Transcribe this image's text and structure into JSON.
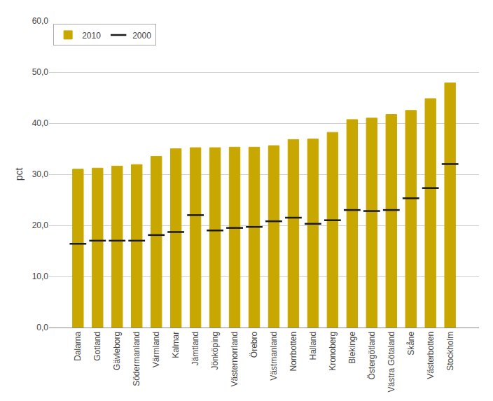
{
  "chart_data": {
    "type": "bar",
    "categories": [
      "Dalarna",
      "Gotland",
      "Gävleborg",
      "Södermanland",
      "Värmland",
      "Kalmar",
      "Jämtland",
      "Jönköping",
      "Västernorrland",
      "Örebro",
      "Västmanland",
      "Norrbotten",
      "Halland",
      "Kronoberg",
      "Blekinge",
      "Östergötland",
      "Västra Götaland",
      "Skåne",
      "Västerbotten",
      "Stockholm"
    ],
    "series": [
      {
        "name": "2010",
        "type": "bar",
        "color": "#C8A800",
        "values": [
          31.0,
          31.2,
          31.6,
          31.9,
          33.5,
          35.0,
          35.2,
          35.2,
          35.3,
          35.3,
          35.6,
          36.8,
          36.9,
          38.2,
          40.7,
          41.0,
          41.7,
          42.5,
          44.8,
          47.9
        ]
      },
      {
        "name": "2000",
        "type": "scatter",
        "marker": "line-ew",
        "color": "#1a1a1a",
        "values": [
          16.4,
          17.0,
          17.0,
          17.0,
          18.1,
          18.7,
          22.0,
          19.0,
          19.5,
          19.7,
          20.8,
          21.5,
          20.3,
          21.0,
          23.0,
          22.8,
          23.0,
          25.3,
          27.3,
          32.0
        ]
      }
    ],
    "ylabel": "pct",
    "ylim": [
      0,
      60
    ],
    "yticks": [
      {
        "value": 0,
        "label": "0,0"
      },
      {
        "value": 10,
        "label": "10,0"
      },
      {
        "value": 20,
        "label": "20,0"
      },
      {
        "value": 30,
        "label": "30,0"
      },
      {
        "value": 40,
        "label": "40,0"
      },
      {
        "value": 50,
        "label": "50,0"
      },
      {
        "value": 60,
        "label": "60,0"
      }
    ],
    "grid": true,
    "legend": "upper left"
  }
}
